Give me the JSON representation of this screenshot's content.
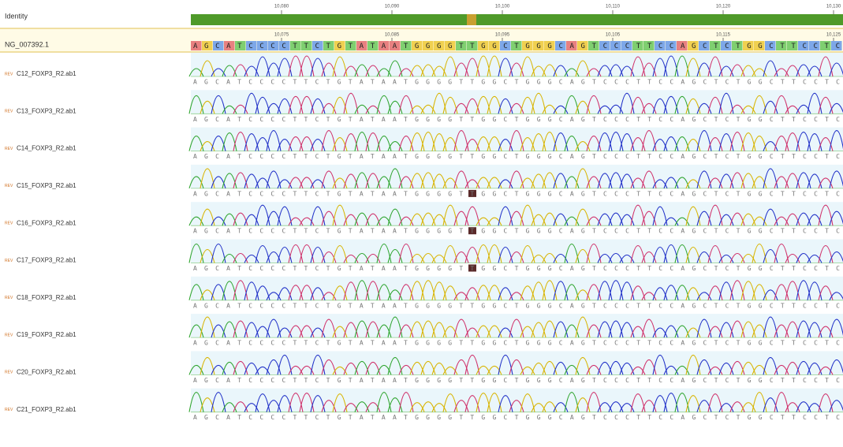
{
  "identity_label": "Identity",
  "ruler_top": [
    "10,080",
    "10,090",
    "10,100",
    "10,110",
    "10,120",
    "10,130"
  ],
  "ruler_ref": [
    "10,075",
    "10,085",
    "10,095",
    "10,105",
    "10,115",
    "10,125"
  ],
  "reference": {
    "label": "NG_007392.1",
    "sequence": "AGCATCCCCTTCTGTATAATGGGGTTGGCTGGGCAGTCCCTTCCAGCTCTGGCTTCCTC"
  },
  "rows": [
    {
      "tag": "REV",
      "label": "C12_FOXP3_R2.ab1",
      "sequence": "AGCATCCCCTTCTGTATAATGGGGTTGGCTGGGCAGTCCCTTCCAGCTCTGGCTTCCTC",
      "variant": false
    },
    {
      "tag": "REV",
      "label": "C13_FOXP3_R2.ab1",
      "sequence": "AGCATCCCCTTCTGTATAATGGGGTTGGCTGGGCAGTCCCTTCCAGCTCTGGCTTCCTC",
      "variant": false
    },
    {
      "tag": "REV",
      "label": "C14_FOXP3_R2.ab1",
      "sequence": "AGCATCCCCTTCTGTATAATGGGGTTGGCTGGGCAGTCCCTTCCAGCTCTGGCTTCCTC",
      "variant": false
    },
    {
      "tag": "REV",
      "label": "C15_FOXP3_R2.ab1",
      "sequence": "AGCATCCCCTTCTGTATAATGGGGTTGGCTGGGCAGTCCCTTCCAGCTCTGGCTTCCTC",
      "variant": true
    },
    {
      "tag": "REV",
      "label": "C16_FOXP3_R2.ab1",
      "sequence": "AGCATCCCCTTCTGTATAATGGGGTTGGCTGGGCAGTCCCTTCCAGCTCTGGCTTCCTC",
      "variant": true
    },
    {
      "tag": "REV",
      "label": "C17_FOXP3_R2.ab1",
      "sequence": "AGCATCCCCTTCTGTATAATGGGGTTGGCTGGGCAGTCCCTTCCAGCTCTGGCTTCCTC",
      "variant": true
    },
    {
      "tag": "REV",
      "label": "C18_FOXP3_R2.ab1",
      "sequence": "AGCATCCCCTTCTGTATAATGGGGTTGGCTGGGCAGTCCCTTCCAGCTCTGGCTTCCTC",
      "variant": false
    },
    {
      "tag": "REV",
      "label": "C19_FOXP3_R2.ab1",
      "sequence": "AGCATCCCCTTCTGTATAATGGGGTTGGCTGGGCAGTCCCTTCCAGCTCTGGCTTCCTC",
      "variant": false
    },
    {
      "tag": "REV",
      "label": "C20_FOXP3_R2.ab1",
      "sequence": "AGCATCCCCTTCTGTATAATGGGGTTGGCTGGGCAGTCCCTTCCAGCTCTGGCTTCCTC",
      "variant": false
    },
    {
      "tag": "REV",
      "label": "C21_FOXP3_R2.ab1",
      "sequence": "AGCATCCCCTTCTGTATAATGGGGTTGGCTGGGCAGTCCCTTCCAGCTCTGGCTTCCTC",
      "variant": false
    }
  ]
}
